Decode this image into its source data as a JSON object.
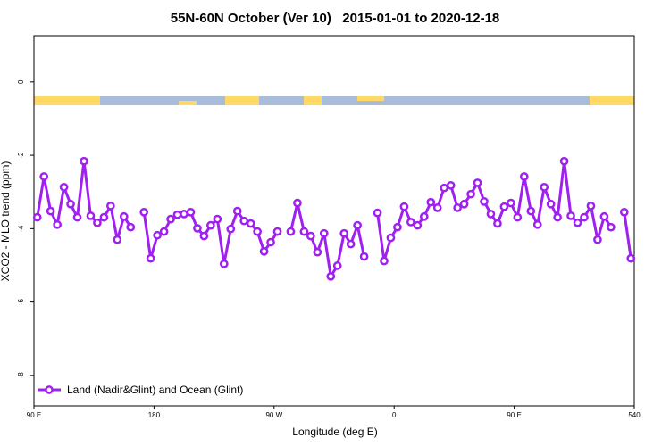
{
  "chart_data": {
    "type": "line",
    "title": "55N-60N October (Ver 10)   2015-01-01 to 2020-12-18",
    "x_label": "Longitude (deg E)",
    "y_label": "XCO2 - MLO trend (ppm)",
    "xlim": [
      90,
      540
    ],
    "ylim": [
      -8.83,
      1.26
    ],
    "xticks": [
      {
        "value": 90,
        "label": "90 E"
      },
      180,
      {
        "value": 270,
        "label": "90 W"
      },
      {
        "value": 360,
        "label": "0"
      },
      {
        "value": 450,
        "label": "90 E"
      },
      540
    ],
    "yticks": [
      0,
      -2,
      -4,
      -6,
      -8
    ],
    "legend_position": "bottomleft",
    "x": [
      92.5,
      97.5,
      102.5,
      107.5,
      112.5,
      117.5,
      122.5,
      127.5,
      132.5,
      137.5,
      142.5,
      147.5,
      152.5,
      157.5,
      162.5,
      167.5,
      172.5,
      177.5,
      182.5,
      187.5,
      192.5,
      197.5,
      202.5,
      207.5,
      212.5,
      217.5,
      222.5,
      227.5,
      232.5,
      237.5,
      242.5,
      247.5,
      252.5,
      257.5,
      262.5,
      267.5,
      272.5,
      277.5,
      282.5,
      287.5,
      292.5,
      297.5,
      302.5,
      307.5,
      312.5,
      317.5,
      322.5,
      327.5,
      332.5,
      337.5,
      342.5,
      347.5,
      352.5,
      357.5,
      362.5,
      367.5,
      372.5,
      377.5,
      382.5,
      387.5,
      392.5,
      397.5,
      402.5,
      407.5,
      412.5,
      417.5,
      422.5,
      427.5,
      432.5,
      437.5,
      442.5,
      447.5,
      452.5,
      457.5,
      462.5,
      467.5,
      472.5,
      477.5,
      482.5,
      487.5,
      492.5,
      497.5,
      502.5,
      507.5,
      512.5,
      517.5,
      522.5,
      527.5,
      532.5,
      537.5
    ],
    "series": [
      {
        "name": "Land (Nadir&Glint) and Ocean (Glint)",
        "color": "#a020f0",
        "values": [
          -3.69,
          -2.58,
          -3.52,
          -3.89,
          -2.87,
          -3.33,
          -3.69,
          -2.16,
          -3.65,
          -3.84,
          -3.69,
          -3.38,
          -4.3,
          -3.67,
          -3.96,
          null,
          -3.55,
          -4.81,
          -4.18,
          -4.08,
          -3.74,
          -3.62,
          -3.6,
          -3.55,
          -3.99,
          -4.2,
          -3.91,
          -3.74,
          -4.96,
          -4.01,
          -3.52,
          -3.79,
          -3.86,
          -4.08,
          -4.62,
          -4.37,
          -4.08,
          null,
          -4.08,
          -3.3,
          -4.08,
          -4.2,
          -4.64,
          -4.13,
          -5.3,
          -5.01,
          -4.13,
          -4.42,
          -3.91,
          -4.76,
          null,
          -3.57,
          -4.88,
          -4.25,
          -3.96,
          -3.4,
          -3.82,
          -3.91,
          -3.67,
          -3.28,
          -3.43,
          -2.89,
          -2.82,
          -3.43,
          -3.33,
          -3.06,
          -2.75,
          -3.26,
          -3.6,
          -3.86,
          -3.4,
          -3.3,
          -3.69,
          -2.58,
          -3.52,
          -3.89,
          -2.87,
          -3.33,
          -3.69,
          -2.16,
          -3.65,
          -3.84,
          -3.69,
          -3.38,
          -4.3,
          -3.67,
          -3.96,
          null,
          -3.55,
          -4.81
        ]
      }
    ]
  }
}
